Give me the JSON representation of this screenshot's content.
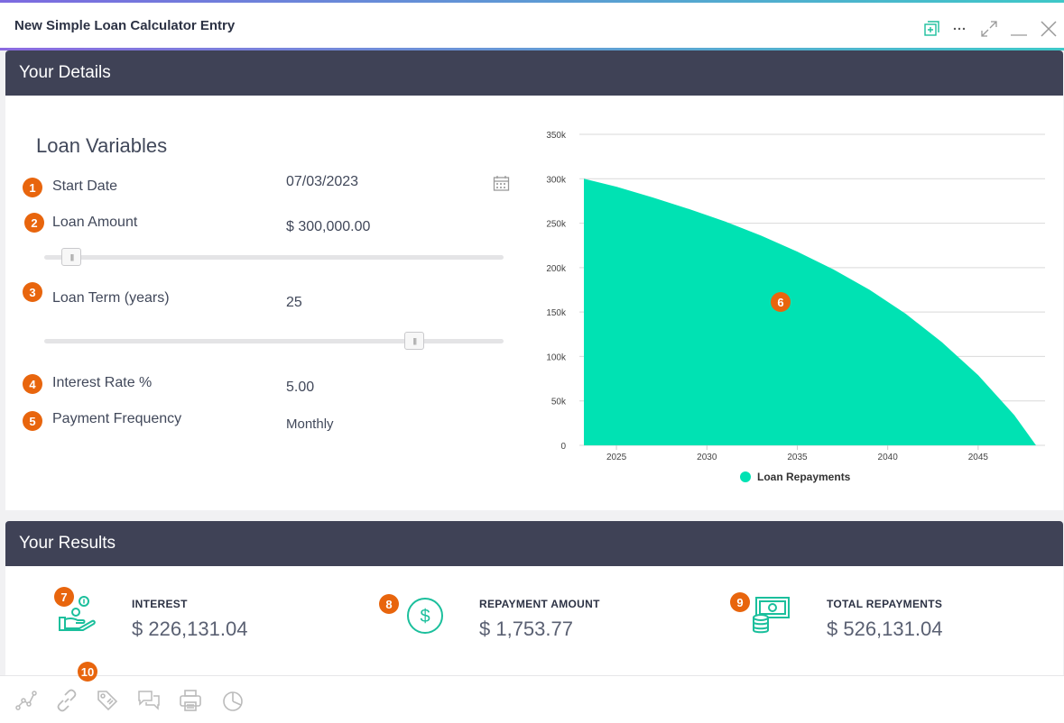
{
  "window": {
    "title": "New Simple Loan Calculator Entry"
  },
  "details": {
    "header": "Your Details",
    "section_title": "Loan Variables",
    "fields": [
      {
        "badge": "1",
        "label": "Start Date",
        "value": "07/03/2023"
      },
      {
        "badge": "2",
        "label": "Loan Amount",
        "value": "$ 300,000.00"
      },
      {
        "badge": "3",
        "label": "Loan Term (years)",
        "value": "25"
      },
      {
        "badge": "4",
        "label": "Interest Rate %",
        "value": "5.00"
      },
      {
        "badge": "5",
        "label": "Payment Frequency",
        "value": "Monthly"
      }
    ],
    "loan_amount_slider_fraction": 0.04,
    "loan_term_slider_fraction": 0.82
  },
  "chart_badge": "6",
  "chart_data": {
    "type": "area",
    "title": "",
    "xlabel": "",
    "ylabel": "",
    "x_ticks": [
      "2025",
      "2030",
      "2035",
      "2040",
      "2045"
    ],
    "y_ticks": [
      "0",
      "50k",
      "100k",
      "150k",
      "200k",
      "250k",
      "300k",
      "350k"
    ],
    "ylim": [
      0,
      350000
    ],
    "xlim": [
      2023.2,
      2048.2
    ],
    "grid": true,
    "legend_position": "bottom",
    "color": "#00e2b3",
    "series": [
      {
        "name": "Loan Repayments",
        "x": [
          2023.2,
          2025,
          2027,
          2029,
          2031,
          2033,
          2035,
          2037,
          2039,
          2041,
          2043,
          2045,
          2047,
          2048.2
        ],
        "values": [
          300000,
          291000,
          279000,
          266000,
          252000,
          236000,
          218000,
          198000,
          175000,
          148000,
          116000,
          79000,
          34000,
          0
        ]
      }
    ]
  },
  "results": {
    "header": "Your Results",
    "items": [
      {
        "badge": "7",
        "label": "INTEREST",
        "value": "$ 226,131.04",
        "icon": "coins-hand-icon"
      },
      {
        "badge": "8",
        "label": "REPAYMENT AMOUNT",
        "value": "$ 1,753.77",
        "icon": "dollar-circle-icon"
      },
      {
        "badge": "9",
        "label": "TOTAL REPAYMENTS",
        "value": "$ 526,131.04",
        "icon": "cash-stack-icon"
      }
    ]
  },
  "footer": {
    "badge": "10",
    "icons": [
      "graph-icon",
      "link-icon",
      "tag-icon",
      "comments-icon",
      "print-icon",
      "pie-chart-icon"
    ]
  },
  "colors": {
    "accent": "#00e2b3",
    "header_bg": "#3f4256",
    "badge": "#e8650d",
    "icon_teal": "#1bbf9c"
  }
}
